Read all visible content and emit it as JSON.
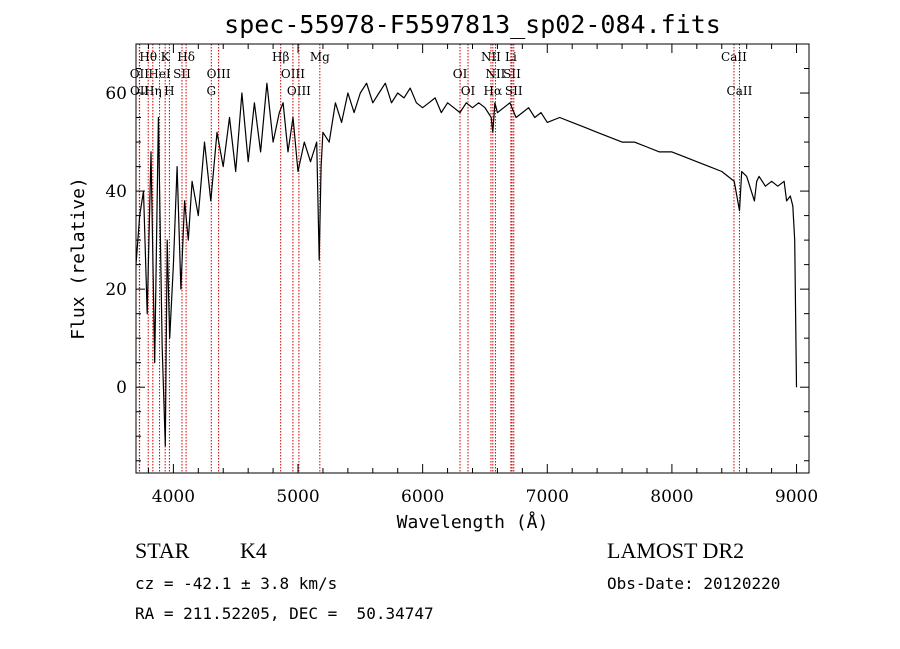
{
  "chart_data": {
    "type": "line",
    "title": "spec-55978-F5597813_sp02-084.fits",
    "xlabel": "Wavelength (Å)",
    "ylabel": "Flux (relative)",
    "xlim": [
      3700,
      9100
    ],
    "ylim": [
      -17.5,
      70
    ],
    "xticks": [
      4000,
      5000,
      6000,
      7000,
      8000,
      9000
    ],
    "yticks": [
      0,
      20,
      40,
      60
    ],
    "grid": false,
    "series": [
      {
        "color": "#000000",
        "x": [
          3700,
          3730,
          3760,
          3790,
          3820,
          3850,
          3880,
          3910,
          3935,
          3950,
          3970,
          4000,
          4030,
          4060,
          4090,
          4120,
          4150,
          4200,
          4250,
          4300,
          4350,
          4400,
          4450,
          4500,
          4550,
          4600,
          4650,
          4700,
          4750,
          4800,
          4850,
          4880,
          4920,
          4960,
          5000,
          5050,
          5100,
          5150,
          5170,
          5185,
          5200,
          5250,
          5300,
          5350,
          5400,
          5450,
          5500,
          5550,
          5600,
          5650,
          5700,
          5750,
          5800,
          5850,
          5900,
          5950,
          6000,
          6050,
          6100,
          6150,
          6200,
          6250,
          6300,
          6350,
          6400,
          6450,
          6500,
          6550,
          6563,
          6580,
          6600,
          6650,
          6700,
          6750,
          6800,
          6850,
          6900,
          6950,
          7000,
          7100,
          7200,
          7300,
          7400,
          7500,
          7600,
          7700,
          7800,
          7900,
          8000,
          8100,
          8200,
          8300,
          8400,
          8450,
          8500,
          8542,
          8560,
          8600,
          8662,
          8680,
          8700,
          8750,
          8800,
          8850,
          8900,
          8920,
          8950,
          8970,
          8985,
          8995,
          9000
        ],
        "y": [
          25,
          35,
          40,
          15,
          48,
          5,
          55,
          8,
          -12,
          30,
          10,
          25,
          45,
          20,
          38,
          30,
          42,
          35,
          50,
          38,
          52,
          45,
          55,
          44,
          60,
          46,
          58,
          48,
          62,
          50,
          56,
          58,
          48,
          55,
          44,
          50,
          46,
          50,
          26,
          45,
          52,
          50,
          58,
          54,
          60,
          56,
          60,
          62,
          58,
          60,
          62,
          58,
          60,
          59,
          61,
          58,
          57,
          58,
          59,
          56,
          58,
          57,
          56,
          58,
          57,
          58,
          57,
          55,
          52,
          58,
          56,
          57,
          58,
          55,
          56,
          57,
          55,
          56,
          54,
          55,
          54,
          53,
          52,
          51,
          50,
          50,
          49,
          48,
          48,
          47,
          46,
          45,
          44,
          43,
          42,
          36,
          44,
          43,
          38,
          42,
          43,
          41,
          42,
          41,
          42,
          38,
          39,
          37,
          30,
          10,
          0
        ]
      }
    ],
    "annotations": [
      {
        "label": "Hθ",
        "x": 3798,
        "row": 0
      },
      {
        "label": "K",
        "x": 3934,
        "row": 0
      },
      {
        "label": "Hδ",
        "x": 4102,
        "row": 0
      },
      {
        "label": "Hβ",
        "x": 4861,
        "row": 0
      },
      {
        "label": "Mg",
        "x": 5175,
        "row": 0
      },
      {
        "label": "NII",
        "x": 6548,
        "row": 0
      },
      {
        "label": "Li",
        "x": 6708,
        "row": 0
      },
      {
        "label": "CaII",
        "x": 8498,
        "row": 0
      },
      {
        "label": "OII",
        "x": 3727,
        "row": 1
      },
      {
        "label": "HeI",
        "x": 3889,
        "row": 1
      },
      {
        "label": "SII",
        "x": 4069,
        "row": 1
      },
      {
        "label": "OIII",
        "x": 4363,
        "row": 1
      },
      {
        "label": "OIII",
        "x": 4959,
        "row": 1
      },
      {
        "label": "OI",
        "x": 6300,
        "row": 1
      },
      {
        "label": "NII",
        "x": 6584,
        "row": 1
      },
      {
        "label": "SII",
        "x": 6717,
        "row": 1
      },
      {
        "label": "OII",
        "x": 3729,
        "row": 2
      },
      {
        "label": "Hη",
        "x": 3835,
        "row": 2
      },
      {
        "label": "H",
        "x": 3968,
        "row": 2
      },
      {
        "label": "G",
        "x": 4304,
        "row": 2
      },
      {
        "label": "OIII",
        "x": 5007,
        "row": 2
      },
      {
        "label": "OI",
        "x": 6364,
        "row": 2
      },
      {
        "label": "Hα",
        "x": 6563,
        "row": 2
      },
      {
        "label": "SII",
        "x": 6731,
        "row": 2
      },
      {
        "label": "CaII",
        "x": 8542,
        "row": 2
      }
    ],
    "line_color": "#cc0000"
  },
  "info": {
    "object_class": "STAR",
    "subclass": "K4",
    "survey": "LAMOST DR2",
    "redshift": "cz = -42.1 ± 3.8 km/s",
    "obs_date": "Obs-Date: 20120220",
    "coords": "RA = 211.52205, DEC =  50.34747"
  }
}
